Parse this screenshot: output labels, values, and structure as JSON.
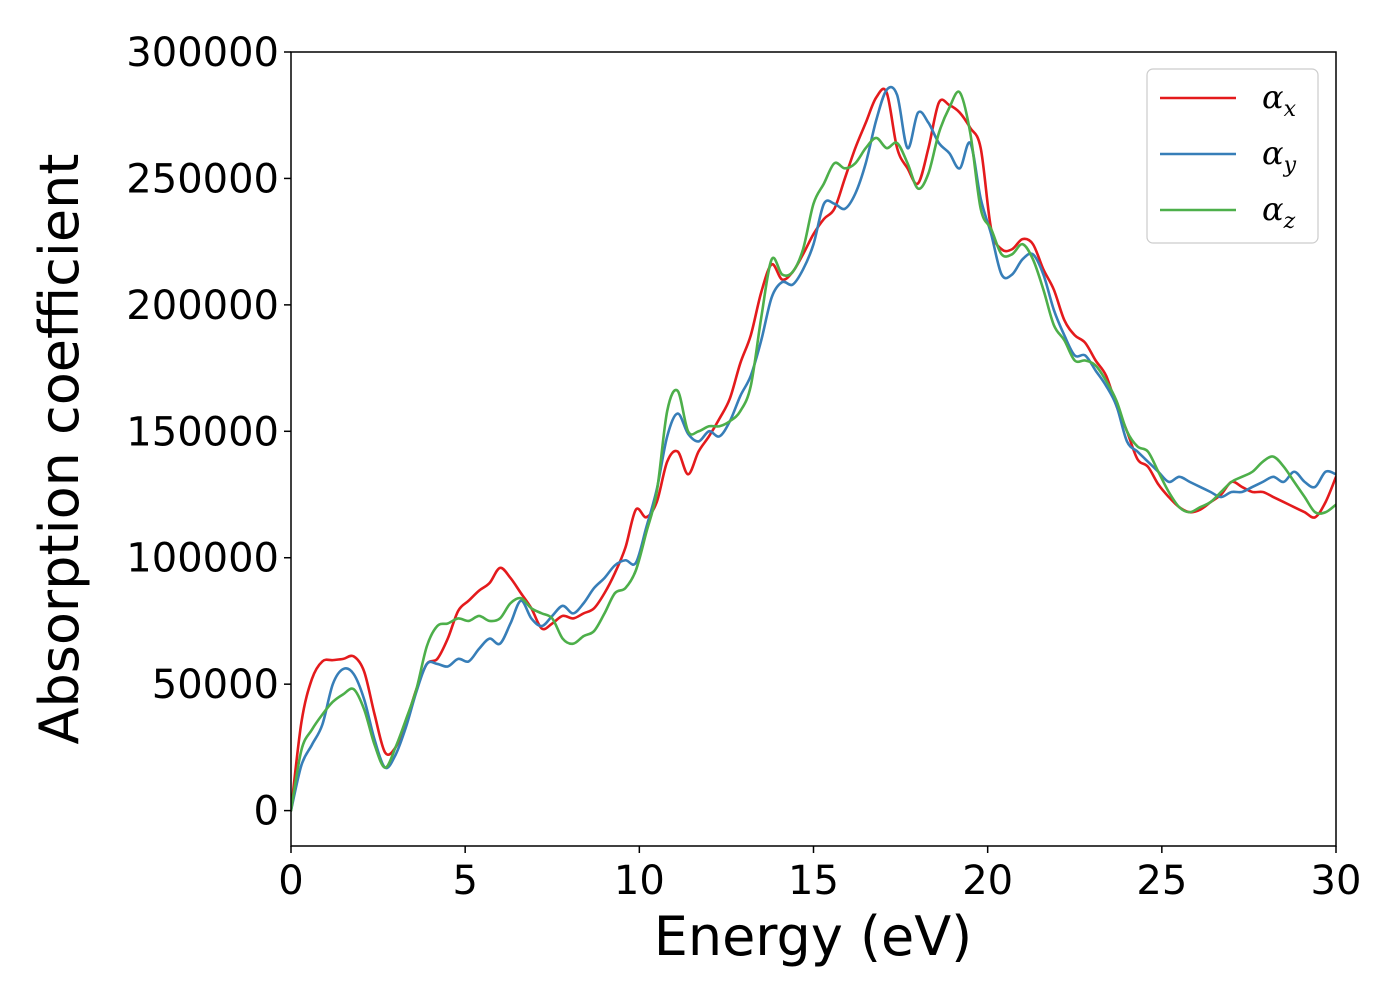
{
  "chart_data": {
    "type": "line",
    "xlabel": "Energy (eV)",
    "ylabel": "Absorption coefficient",
    "xlim": [
      0,
      30
    ],
    "ylim": [
      -14000,
      300000
    ],
    "xticks": [
      0,
      5,
      10,
      15,
      20,
      25,
      30
    ],
    "xtick_labels": [
      "0",
      "5",
      "10",
      "15",
      "20",
      "25",
      "30"
    ],
    "yticks": [
      0,
      50000,
      100000,
      150000,
      200000,
      250000,
      300000
    ],
    "ytick_labels": [
      "0",
      "50000",
      "100000",
      "150000",
      "200000",
      "250000",
      "300000"
    ],
    "grid": false,
    "legend_position": "top-right",
    "series": [
      {
        "name": "αx",
        "base": "α",
        "sub": "x",
        "color": "#e41a1c",
        "x": [
          0,
          0.3,
          0.6,
          0.9,
          1.2,
          1.5,
          1.8,
          2.1,
          2.4,
          2.7,
          3.0,
          3.3,
          3.6,
          3.9,
          4.2,
          4.5,
          4.8,
          5.1,
          5.4,
          5.7,
          6.0,
          6.3,
          6.6,
          6.9,
          7.2,
          7.5,
          7.8,
          8.1,
          8.4,
          8.7,
          9.0,
          9.3,
          9.6,
          9.9,
          10.2,
          10.5,
          10.8,
          11.1,
          11.4,
          11.7,
          12.0,
          12.3,
          12.6,
          12.9,
          13.2,
          13.5,
          13.8,
          14.1,
          14.4,
          14.7,
          15.0,
          15.3,
          15.6,
          15.9,
          16.2,
          16.5,
          16.8,
          17.1,
          17.4,
          17.7,
          18.0,
          18.3,
          18.6,
          18.9,
          19.2,
          19.5,
          19.8,
          20.1,
          20.4,
          20.7,
          21.0,
          21.3,
          21.6,
          21.9,
          22.2,
          22.5,
          22.8,
          23.1,
          23.4,
          23.7,
          24.0,
          24.3,
          24.6,
          24.9,
          25.2,
          25.5,
          25.8,
          26.1,
          26.4,
          26.7,
          27.0,
          27.3,
          27.6,
          27.9,
          28.2,
          28.5,
          28.8,
          29.1,
          29.4,
          29.7,
          30.0
        ],
        "values": [
          0,
          35000,
          52000,
          59000,
          59500,
          60000,
          61000,
          55000,
          38000,
          23000,
          25000,
          35000,
          48000,
          58000,
          60000,
          68000,
          79000,
          83000,
          87000,
          90000,
          96000,
          92000,
          86000,
          80000,
          72000,
          74000,
          77000,
          76000,
          78000,
          80000,
          86000,
          94000,
          104000,
          119000,
          116000,
          122000,
          138000,
          142000,
          133000,
          142000,
          148000,
          155000,
          163000,
          177000,
          188000,
          205000,
          216000,
          210000,
          213000,
          220000,
          228000,
          234000,
          238000,
          250000,
          262000,
          272000,
          282000,
          284000,
          262000,
          254000,
          248000,
          262000,
          280000,
          279000,
          276000,
          270000,
          262000,
          230000,
          222000,
          222000,
          226000,
          224000,
          214000,
          206000,
          194000,
          188000,
          185000,
          178000,
          172000,
          160000,
          150000,
          139000,
          136000,
          129000,
          124000,
          120000,
          118000,
          119000,
          122000,
          125000,
          130000,
          128000,
          126000,
          126000,
          124000,
          122000,
          120000,
          118000,
          116000,
          122000,
          132000
        ]
      },
      {
        "name": "αy",
        "base": "α",
        "sub": "y",
        "color": "#377eb8",
        "x": [
          0,
          0.3,
          0.6,
          0.9,
          1.2,
          1.5,
          1.8,
          2.1,
          2.4,
          2.7,
          3.0,
          3.3,
          3.6,
          3.9,
          4.2,
          4.5,
          4.8,
          5.1,
          5.4,
          5.7,
          6.0,
          6.3,
          6.6,
          6.9,
          7.2,
          7.5,
          7.8,
          8.1,
          8.4,
          8.7,
          9.0,
          9.3,
          9.6,
          9.9,
          10.2,
          10.5,
          10.8,
          11.1,
          11.4,
          11.7,
          12.0,
          12.3,
          12.6,
          12.9,
          13.2,
          13.5,
          13.8,
          14.1,
          14.4,
          14.7,
          15.0,
          15.3,
          15.6,
          15.9,
          16.2,
          16.5,
          16.8,
          17.1,
          17.4,
          17.7,
          18.0,
          18.3,
          18.6,
          18.9,
          19.2,
          19.5,
          19.8,
          20.1,
          20.4,
          20.7,
          21.0,
          21.3,
          21.6,
          21.9,
          22.2,
          22.5,
          22.8,
          23.1,
          23.4,
          23.7,
          24.0,
          24.3,
          24.6,
          24.9,
          25.2,
          25.5,
          25.8,
          26.1,
          26.4,
          26.7,
          27.0,
          27.3,
          27.6,
          27.9,
          28.2,
          28.5,
          28.8,
          29.1,
          29.4,
          29.7,
          30.0
        ],
        "values": [
          0,
          18000,
          26000,
          34000,
          50000,
          56000,
          54000,
          44000,
          28000,
          17000,
          22000,
          33000,
          47000,
          58000,
          58000,
          57000,
          60000,
          59000,
          64000,
          68000,
          66000,
          74000,
          83000,
          76000,
          73000,
          77000,
          81000,
          78000,
          82000,
          88000,
          92000,
          97000,
          99000,
          98000,
          112000,
          127000,
          148000,
          157000,
          149000,
          146000,
          150000,
          148000,
          154000,
          164000,
          172000,
          186000,
          203000,
          209000,
          208000,
          214000,
          224000,
          240000,
          240000,
          238000,
          244000,
          256000,
          273000,
          285000,
          283000,
          262000,
          276000,
          272000,
          264000,
          260000,
          254000,
          264000,
          242000,
          228000,
          212000,
          212000,
          218000,
          220000,
          212000,
          198000,
          188000,
          180000,
          180000,
          174000,
          168000,
          160000,
          146000,
          142000,
          138000,
          134000,
          130000,
          132000,
          130000,
          128000,
          126000,
          124000,
          126000,
          126000,
          128000,
          130000,
          132000,
          130000,
          134000,
          130000,
          128000,
          134000,
          133000
        ]
      },
      {
        "name": "αz",
        "base": "α",
        "sub": "z",
        "color": "#4daf4a",
        "x": [
          0,
          0.3,
          0.6,
          0.9,
          1.2,
          1.5,
          1.8,
          2.1,
          2.4,
          2.7,
          3.0,
          3.3,
          3.6,
          3.9,
          4.2,
          4.5,
          4.8,
          5.1,
          5.4,
          5.7,
          6.0,
          6.3,
          6.6,
          6.9,
          7.2,
          7.5,
          7.8,
          8.1,
          8.4,
          8.7,
          9.0,
          9.3,
          9.6,
          9.9,
          10.2,
          10.5,
          10.8,
          11.1,
          11.4,
          11.7,
          12.0,
          12.3,
          12.6,
          12.9,
          13.2,
          13.5,
          13.8,
          14.1,
          14.4,
          14.7,
          15.0,
          15.3,
          15.6,
          15.9,
          16.2,
          16.5,
          16.8,
          17.1,
          17.4,
          17.7,
          18.0,
          18.3,
          18.6,
          18.9,
          19.2,
          19.5,
          19.8,
          20.1,
          20.4,
          20.7,
          21.0,
          21.3,
          21.6,
          21.9,
          22.2,
          22.5,
          22.8,
          23.1,
          23.4,
          23.7,
          24.0,
          24.3,
          24.6,
          24.9,
          25.2,
          25.5,
          25.8,
          26.1,
          26.4,
          26.7,
          27.0,
          27.3,
          27.6,
          27.9,
          28.2,
          28.5,
          28.8,
          29.1,
          29.4,
          29.7,
          30.0
        ],
        "values": [
          0,
          24000,
          32000,
          38000,
          43000,
          46000,
          48000,
          40000,
          26000,
          17000,
          25000,
          36000,
          48000,
          65000,
          73000,
          74000,
          76000,
          75000,
          77000,
          75000,
          76000,
          82000,
          84000,
          80000,
          78000,
          76000,
          68000,
          66000,
          69000,
          71000,
          78000,
          86000,
          88000,
          95000,
          110000,
          126000,
          158000,
          166000,
          150000,
          150000,
          152000,
          152000,
          154000,
          158000,
          168000,
          195000,
          218000,
          212000,
          213000,
          222000,
          240000,
          248000,
          256000,
          254000,
          256000,
          262000,
          266000,
          262000,
          264000,
          256000,
          246000,
          252000,
          268000,
          278000,
          284000,
          268000,
          238000,
          230000,
          220000,
          220000,
          224000,
          218000,
          206000,
          192000,
          186000,
          178000,
          178000,
          176000,
          170000,
          162000,
          150000,
          144000,
          142000,
          134000,
          126000,
          120000,
          118000,
          120000,
          122000,
          126000,
          130000,
          132000,
          134000,
          138000,
          140000,
          136000,
          130000,
          124000,
          118000,
          118000,
          121000
        ]
      }
    ]
  }
}
